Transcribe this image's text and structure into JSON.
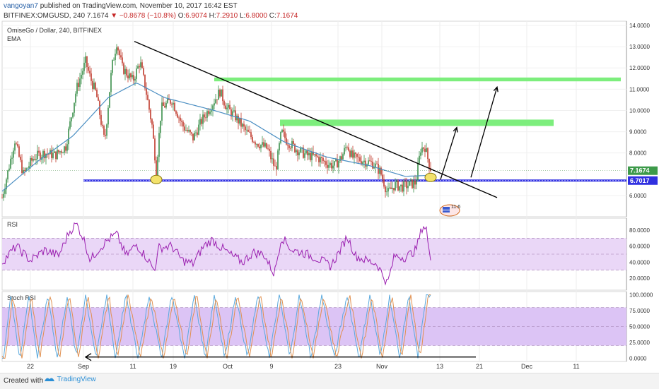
{
  "header": {
    "author": "vangoyan7",
    "published_text": "published on TradingView.com, November 10, 2017 16:42 EST",
    "symbol": "BITFINEX:OMGUSD, 240",
    "last": "7.1674",
    "change": "−0.8678 (−10.8%)",
    "o_label": "O:",
    "o": "6.9074",
    "h_label": "H:",
    "h": "7.2910",
    "l_label": "L:",
    "l": "6.8000",
    "c_label": "C:",
    "c": "7.1674"
  },
  "footer": {
    "created_with": "Created with",
    "brand": "TradingView"
  },
  "colors": {
    "up": "#3a8f4a",
    "down": "#c0392b",
    "ema": "#4a8ec2",
    "support": "#3030e0",
    "resistance": "#7dee7d",
    "rsi": "#9b1fb0",
    "rsi_band": "#ead7f7",
    "stoch_k": "#5aa9dd",
    "stoch_d": "#e09050",
    "stoch_band": "#dcc4f5"
  },
  "chart_data": [
    {
      "type": "candlestick",
      "title": "OmiseGo / Dollar, 240, BITFINEX",
      "indicator_label": "EMA",
      "x_tick_labels": [
        "22",
        "Sep",
        "11",
        "19",
        "Oct",
        "9",
        "23",
        "Nov",
        "13",
        "21",
        "Dec",
        "11"
      ],
      "y_ticks": [
        "14.0000",
        "13.0000",
        "12.0000",
        "11.0000",
        "10.0000",
        "9.0000",
        "8.0000",
        "6.0000"
      ],
      "ylim": [
        5.0,
        14.2
      ],
      "last_price_label": "7.1674",
      "support_label": "6.7017",
      "anchors": [
        {
          "x": 0,
          "v": 5.9
        },
        {
          "x": 18,
          "v": 8.6
        },
        {
          "x": 30,
          "v": 7.0
        },
        {
          "x": 45,
          "v": 7.8
        },
        {
          "x": 60,
          "v": 8.0
        },
        {
          "x": 75,
          "v": 7.9
        },
        {
          "x": 90,
          "v": 8.3
        },
        {
          "x": 105,
          "v": 11.0
        },
        {
          "x": 118,
          "v": 12.3
        },
        {
          "x": 125,
          "v": 11.5
        },
        {
          "x": 133,
          "v": 10.8
        },
        {
          "x": 145,
          "v": 8.5
        },
        {
          "x": 155,
          "v": 12.0
        },
        {
          "x": 162,
          "v": 13.2
        },
        {
          "x": 170,
          "v": 12.0
        },
        {
          "x": 185,
          "v": 11.4
        },
        {
          "x": 195,
          "v": 12.3
        },
        {
          "x": 203,
          "v": 11.0
        },
        {
          "x": 212,
          "v": 9.3
        },
        {
          "x": 218,
          "v": 7.2
        },
        {
          "x": 225,
          "v": 10.1
        },
        {
          "x": 240,
          "v": 10.5
        },
        {
          "x": 255,
          "v": 9.3
        },
        {
          "x": 270,
          "v": 8.7
        },
        {
          "x": 282,
          "v": 9.5
        },
        {
          "x": 295,
          "v": 10.2
        },
        {
          "x": 308,
          "v": 10.9
        },
        {
          "x": 318,
          "v": 10.1
        },
        {
          "x": 330,
          "v": 9.7
        },
        {
          "x": 345,
          "v": 9.0
        },
        {
          "x": 360,
          "v": 8.5
        },
        {
          "x": 375,
          "v": 8.2
        },
        {
          "x": 387,
          "v": 7.2
        },
        {
          "x": 395,
          "v": 9.0
        },
        {
          "x": 402,
          "v": 8.6
        },
        {
          "x": 415,
          "v": 8.2
        },
        {
          "x": 430,
          "v": 7.9
        },
        {
          "x": 445,
          "v": 7.8
        },
        {
          "x": 460,
          "v": 7.5
        },
        {
          "x": 470,
          "v": 7.4
        },
        {
          "x": 480,
          "v": 7.8
        },
        {
          "x": 488,
          "v": 8.4
        },
        {
          "x": 495,
          "v": 7.8
        },
        {
          "x": 505,
          "v": 7.7
        },
        {
          "x": 515,
          "v": 7.6
        },
        {
          "x": 525,
          "v": 7.5
        },
        {
          "x": 535,
          "v": 7.1
        },
        {
          "x": 545,
          "v": 6.1
        },
        {
          "x": 555,
          "v": 6.5
        },
        {
          "x": 565,
          "v": 6.4
        },
        {
          "x": 575,
          "v": 6.5
        },
        {
          "x": 585,
          "v": 6.6
        },
        {
          "x": 592,
          "v": 8.2
        },
        {
          "x": 598,
          "v": 8.3
        },
        {
          "x": 603,
          "v": 7.6
        },
        {
          "x": 607,
          "v": 7.17
        }
      ],
      "ema_anchors": [
        {
          "x": 0,
          "v": 6.2
        },
        {
          "x": 50,
          "v": 7.6
        },
        {
          "x": 100,
          "v": 8.8
        },
        {
          "x": 150,
          "v": 10.6
        },
        {
          "x": 190,
          "v": 11.3
        },
        {
          "x": 230,
          "v": 10.6
        },
        {
          "x": 300,
          "v": 10.0
        },
        {
          "x": 350,
          "v": 9.5
        },
        {
          "x": 400,
          "v": 8.5
        },
        {
          "x": 460,
          "v": 7.8
        },
        {
          "x": 520,
          "v": 7.4
        },
        {
          "x": 570,
          "v": 6.9
        },
        {
          "x": 607,
          "v": 6.95
        }
      ],
      "support_level": 6.7017,
      "resistance_zones": [
        {
          "x1": 300,
          "x2": 875,
          "v1": 11.37,
          "v2": 11.55
        },
        {
          "x1": 393,
          "x2": 780,
          "v1": 9.27,
          "v2": 9.57
        }
      ],
      "trendline": {
        "x1": 187,
        "v1": 13.25,
        "x2": 700,
        "v2": 5.9
      },
      "arrows": [
        {
          "x1": 620,
          "v1": 6.75,
          "x2": 643,
          "v2": 9.2
        },
        {
          "x1": 663,
          "v1": 6.85,
          "x2": 700,
          "v2": 11.1
        }
      ],
      "markers": [
        {
          "x": 218,
          "v": 6.75
        },
        {
          "x": 606,
          "v": 6.85
        }
      ],
      "earnings_badge": "11.6"
    },
    {
      "type": "line",
      "title": "RSI",
      "ylim": [
        5,
        95
      ],
      "y_ticks": [
        "80.0000",
        "60.0000",
        "40.0000",
        "20.0000"
      ],
      "band": [
        30,
        70
      ],
      "anchors": [
        {
          "x": 0,
          "v": 40
        },
        {
          "x": 20,
          "v": 60
        },
        {
          "x": 40,
          "v": 42
        },
        {
          "x": 60,
          "v": 55
        },
        {
          "x": 80,
          "v": 48
        },
        {
          "x": 95,
          "v": 78
        },
        {
          "x": 105,
          "v": 88
        },
        {
          "x": 115,
          "v": 70
        },
        {
          "x": 125,
          "v": 42
        },
        {
          "x": 135,
          "v": 55
        },
        {
          "x": 150,
          "v": 68
        },
        {
          "x": 162,
          "v": 75
        },
        {
          "x": 175,
          "v": 48
        },
        {
          "x": 190,
          "v": 62
        },
        {
          "x": 205,
          "v": 45
        },
        {
          "x": 215,
          "v": 30
        },
        {
          "x": 222,
          "v": 58
        },
        {
          "x": 240,
          "v": 60
        },
        {
          "x": 255,
          "v": 42
        },
        {
          "x": 270,
          "v": 38
        },
        {
          "x": 285,
          "v": 60
        },
        {
          "x": 297,
          "v": 68
        },
        {
          "x": 310,
          "v": 58
        },
        {
          "x": 325,
          "v": 48
        },
        {
          "x": 340,
          "v": 40
        },
        {
          "x": 355,
          "v": 52
        },
        {
          "x": 370,
          "v": 50
        },
        {
          "x": 385,
          "v": 25
        },
        {
          "x": 395,
          "v": 72
        },
        {
          "x": 410,
          "v": 55
        },
        {
          "x": 425,
          "v": 52
        },
        {
          "x": 445,
          "v": 45
        },
        {
          "x": 465,
          "v": 35
        },
        {
          "x": 478,
          "v": 55
        },
        {
          "x": 488,
          "v": 72
        },
        {
          "x": 500,
          "v": 48
        },
        {
          "x": 515,
          "v": 42
        },
        {
          "x": 530,
          "v": 38
        },
        {
          "x": 545,
          "v": 13
        },
        {
          "x": 555,
          "v": 48
        },
        {
          "x": 570,
          "v": 46
        },
        {
          "x": 585,
          "v": 55
        },
        {
          "x": 595,
          "v": 86
        },
        {
          "x": 600,
          "v": 82
        },
        {
          "x": 604,
          "v": 50
        },
        {
          "x": 607,
          "v": 42
        }
      ]
    },
    {
      "type": "line",
      "title": "Stoch RSI",
      "ylim": [
        -5,
        105
      ],
      "y_ticks": [
        "100.0000",
        "75.0000",
        "50.0000",
        "25.0000",
        "0.0000"
      ],
      "band": [
        20,
        80
      ],
      "peaks_x": [
        12,
        38,
        65,
        92,
        118,
        148,
        175,
        208,
        240,
        272,
        300,
        330,
        362,
        392,
        420,
        452,
        488,
        520,
        548,
        575,
        600
      ],
      "trough_x": [
        2,
        25,
        50,
        78,
        105,
        133,
        160,
        192,
        225,
        258,
        287,
        315,
        347,
        378,
        407,
        437,
        470,
        505,
        535,
        562,
        588
      ],
      "support_arrow": {
        "x1": 670,
        "v1": 2,
        "x2": 118,
        "v2": 2
      }
    }
  ]
}
